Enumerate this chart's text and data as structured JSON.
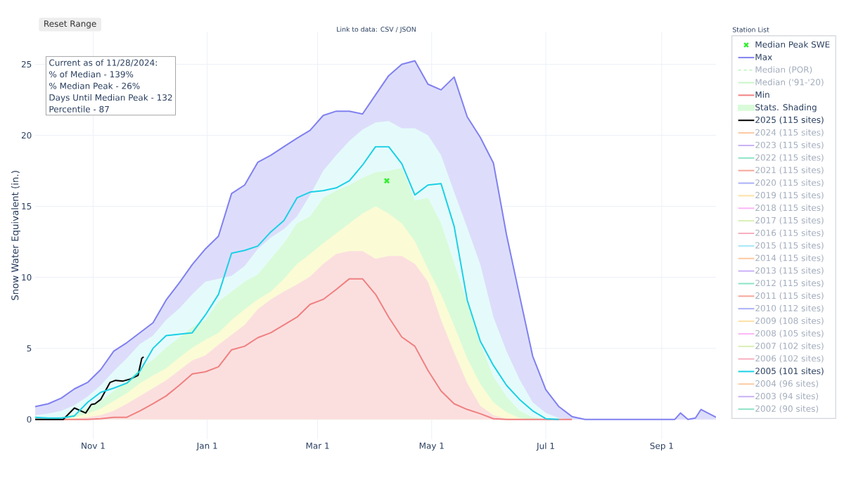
{
  "chart_data": {
    "type": "line",
    "ylabel": "Snow Water Equivalent (in.)",
    "legend_title": "Station List",
    "legend": "right",
    "grid": true,
    "annotations": [
      "Reset Range",
      "Link to data: CSV / JSON",
      "Current as of 11/28/2024:",
      "% of Median - 139%",
      "% Median Peak - 26%",
      "Days Until Median Peak - 132",
      "Percentile - 87"
    ],
    "xlim": [
      "2024-10-01",
      "2025-09-30"
    ],
    "xticks": [
      {
        "value": "2024-11-01",
        "label": "Nov 1"
      },
      {
        "value": "2025-01-01",
        "label": "Jan 1"
      },
      {
        "value": "2025-03-01",
        "label": "Mar 1"
      },
      {
        "value": "2025-05-01",
        "label": "May 1"
      },
      {
        "value": "2025-07-01",
        "label": "Jul 1"
      },
      {
        "value": "2025-09-01",
        "label": "Sep 1"
      }
    ],
    "ylim": [
      -1.4,
      27.3
    ],
    "yticks": [
      0,
      5,
      10,
      15,
      20,
      25
    ],
    "x": [
      "2024-10-01",
      "2024-10-08",
      "2024-10-15",
      "2024-10-22",
      "2024-10-29",
      "2024-11-05",
      "2024-11-12",
      "2024-11-19",
      "2024-11-26",
      "2024-12-03",
      "2024-12-10",
      "2024-12-17",
      "2024-12-24",
      "2024-12-31",
      "2025-01-07",
      "2025-01-14",
      "2025-01-21",
      "2025-01-28",
      "2025-02-04",
      "2025-02-11",
      "2025-02-18",
      "2025-02-25",
      "2025-03-04",
      "2025-03-11",
      "2025-03-18",
      "2025-03-25",
      "2025-04-01",
      "2025-04-08",
      "2025-04-15",
      "2025-04-22",
      "2025-04-29",
      "2025-05-06",
      "2025-05-13",
      "2025-05-20",
      "2025-05-27",
      "2025-06-03",
      "2025-06-10",
      "2025-06-17",
      "2025-06-24",
      "2025-07-01",
      "2025-07-08",
      "2025-07-15",
      "2025-07-22",
      "2025-07-29",
      "2025-08-15",
      "2025-09-01",
      "2025-09-08",
      "2025-09-11",
      "2025-09-15",
      "2025-09-19",
      "2025-09-22",
      "2025-09-30"
    ],
    "series": [
      {
        "name": "Median Peak SWE",
        "type": "scatter",
        "marker": "cross",
        "color": "#33ee33",
        "x": [
          "2025-04-07"
        ],
        "values": [
          16.8
        ]
      },
      {
        "name": "Max",
        "type": "area",
        "line_style": "solid",
        "color": "#8080f0",
        "values": [
          0.9,
          1.1,
          1.5,
          2.15,
          2.6,
          3.5,
          4.8,
          5.4,
          6.1,
          6.8,
          8.4,
          9.6,
          10.9,
          12.0,
          12.9,
          15.9,
          16.5,
          18.1,
          18.6,
          19.2,
          19.8,
          20.35,
          21.4,
          21.7,
          21.7,
          21.5,
          22.85,
          24.2,
          25.0,
          25.25,
          23.6,
          23.2,
          24.1,
          21.3,
          19.85,
          18.05,
          13.0,
          8.7,
          4.45,
          2.1,
          0.9,
          0.2,
          0,
          0,
          0,
          0,
          0,
          0.45,
          0,
          0.1,
          0.7,
          0.15
        ]
      },
      {
        "name": "Median (POR)",
        "line_style": "dashed",
        "color": "#c8f5c8",
        "values": [
          null,
          null,
          null,
          null,
          null,
          null,
          null,
          null,
          null,
          null,
          null,
          null,
          null,
          null,
          null,
          null,
          null,
          null,
          null,
          null,
          null,
          null,
          null,
          null,
          null,
          null,
          null,
          null,
          null,
          null,
          null,
          null,
          null,
          null,
          null,
          null,
          null,
          null,
          null,
          null,
          null,
          null,
          null,
          null,
          null,
          null,
          null,
          null,
          null,
          null,
          null,
          null
        ]
      },
      {
        "name": "Median ('91-'20)",
        "color": "#c8f5c8",
        "values": [
          null,
          null,
          null,
          null,
          null,
          null,
          null,
          null,
          null,
          null,
          null,
          null,
          null,
          null,
          null,
          null,
          null,
          null,
          null,
          null,
          null,
          null,
          null,
          null,
          null,
          null,
          null,
          null,
          null,
          null,
          null,
          null,
          null,
          null,
          null,
          null,
          null,
          null,
          null,
          null,
          null,
          null,
          null,
          null,
          null,
          null,
          null,
          null,
          null,
          null,
          null,
          null
        ]
      },
      {
        "name": "Min",
        "color": "#f08080",
        "values": [
          0,
          0,
          0,
          0,
          0,
          0.05,
          0.15,
          0.15,
          0.6,
          1.1,
          1.65,
          2.4,
          3.2,
          3.35,
          3.7,
          4.9,
          5.15,
          5.75,
          6.1,
          6.65,
          7.2,
          8.1,
          8.45,
          9.15,
          9.9,
          9.9,
          8.8,
          7.2,
          5.8,
          5.15,
          3.45,
          2.0,
          1.1,
          0.7,
          0.4,
          0.05,
          0,
          0,
          0,
          0,
          0,
          0,
          null,
          null,
          null,
          null,
          null,
          null,
          null,
          null,
          null,
          null
        ]
      },
      {
        "name": "Stats. Shading",
        "type": "area",
        "color": "#d9fbd9",
        "values": [
          0.1,
          0.1,
          0.15,
          0.4,
          0.8,
          1.3,
          2.0,
          2.7,
          3.6,
          4.2,
          5.05,
          5.75,
          6.5,
          7.0,
          8.3,
          9.0,
          9.7,
          10.2,
          11.3,
          12.4,
          13.8,
          14.3,
          15.6,
          16.1,
          16.5,
          17.0,
          17.4,
          17.5,
          17.7,
          15.4,
          15.6,
          13.8,
          11.0,
          8.2,
          5.3,
          3.0,
          1.6,
          0.6,
          0.15,
          0,
          null,
          null,
          null,
          null,
          null,
          null,
          null,
          null,
          null,
          null,
          null,
          null
        ]
      },
      {
        "name": "2025 (115 sites)",
        "color": "#000000",
        "x": [
          "2024-10-01",
          "2024-10-16",
          "2024-10-22",
          "2024-10-28",
          "2024-10-31",
          "2024-11-02",
          "2024-11-05",
          "2024-11-10",
          "2024-11-13",
          "2024-11-17",
          "2024-11-21",
          "2024-11-25",
          "2024-11-27",
          "2024-11-28"
        ],
        "values": [
          0,
          0,
          0.8,
          0.45,
          1.05,
          1.1,
          1.4,
          2.6,
          2.75,
          2.7,
          2.85,
          3.1,
          4.3,
          4.4
        ]
      },
      {
        "name": "2024 (115 sites)",
        "color": "#fdc9a0",
        "values": [
          null,
          null,
          null,
          null,
          null,
          null,
          null,
          null,
          null,
          null,
          null,
          null,
          null,
          null,
          null,
          null,
          null,
          null,
          null,
          null,
          null,
          null,
          null,
          null,
          null,
          null,
          null,
          null,
          null,
          null,
          null,
          null,
          null,
          null,
          null,
          null,
          null,
          null,
          null,
          null,
          null,
          null,
          null,
          null,
          null,
          null,
          null,
          null,
          null,
          null,
          null,
          null
        ]
      },
      {
        "name": "2023 (115 sites)",
        "color": "#c9b0f7",
        "values": [
          null,
          null,
          null,
          null,
          null,
          null,
          null,
          null,
          null,
          null,
          null,
          null,
          null,
          null,
          null,
          null,
          null,
          null,
          null,
          null,
          null,
          null,
          null,
          null,
          null,
          null,
          null,
          null,
          null,
          null,
          null,
          null,
          null,
          null,
          null,
          null,
          null,
          null,
          null,
          null,
          null,
          null,
          null,
          null,
          null,
          null,
          null,
          null,
          null,
          null,
          null,
          null
        ]
      },
      {
        "name": "2022 (115 sites)",
        "color": "#8de3c6",
        "values": [
          null,
          null,
          null,
          null,
          null,
          null,
          null,
          null,
          null,
          null,
          null,
          null,
          null,
          null,
          null,
          null,
          null,
          null,
          null,
          null,
          null,
          null,
          null,
          null,
          null,
          null,
          null,
          null,
          null,
          null,
          null,
          null,
          null,
          null,
          null,
          null,
          null,
          null,
          null,
          null,
          null,
          null,
          null,
          null,
          null,
          null,
          null,
          null,
          null,
          null,
          null,
          null
        ]
      },
      {
        "name": "2021 (115 sites)",
        "color": "#f7a597",
        "values": [
          null,
          null,
          null,
          null,
          null,
          null,
          null,
          null,
          null,
          null,
          null,
          null,
          null,
          null,
          null,
          null,
          null,
          null,
          null,
          null,
          null,
          null,
          null,
          null,
          null,
          null,
          null,
          null,
          null,
          null,
          null,
          null,
          null,
          null,
          null,
          null,
          null,
          null,
          null,
          null,
          null,
          null,
          null,
          null,
          null,
          null,
          null,
          null,
          null,
          null,
          null,
          null
        ]
      },
      {
        "name": "2020 (115 sites)",
        "color": "#aab0f7",
        "values": [
          null,
          null,
          null,
          null,
          null,
          null,
          null,
          null,
          null,
          null,
          null,
          null,
          null,
          null,
          null,
          null,
          null,
          null,
          null,
          null,
          null,
          null,
          null,
          null,
          null,
          null,
          null,
          null,
          null,
          null,
          null,
          null,
          null,
          null,
          null,
          null,
          null,
          null,
          null,
          null,
          null,
          null,
          null,
          null,
          null,
          null,
          null,
          null,
          null,
          null,
          null,
          null
        ]
      },
      {
        "name": "2019 (115 sites)",
        "color": "#fde1a4",
        "values": [
          null,
          null,
          null,
          null,
          null,
          null,
          null,
          null,
          null,
          null,
          null,
          null,
          null,
          null,
          null,
          null,
          null,
          null,
          null,
          null,
          null,
          null,
          null,
          null,
          null,
          null,
          null,
          null,
          null,
          null,
          null,
          null,
          null,
          null,
          null,
          null,
          null,
          null,
          null,
          null,
          null,
          null,
          null,
          null,
          null,
          null,
          null,
          null,
          null,
          null,
          null,
          null
        ]
      },
      {
        "name": "2018 (115 sites)",
        "color": "#fbb7f7",
        "values": [
          null,
          null,
          null,
          null,
          null,
          null,
          null,
          null,
          null,
          null,
          null,
          null,
          null,
          null,
          null,
          null,
          null,
          null,
          null,
          null,
          null,
          null,
          null,
          null,
          null,
          null,
          null,
          null,
          null,
          null,
          null,
          null,
          null,
          null,
          null,
          null,
          null,
          null,
          null,
          null,
          null,
          null,
          null,
          null,
          null,
          null,
          null,
          null,
          null,
          null,
          null,
          null
        ]
      },
      {
        "name": "2017 (115 sites)",
        "color": "#d8efb3",
        "values": [
          null,
          null,
          null,
          null,
          null,
          null,
          null,
          null,
          null,
          null,
          null,
          null,
          null,
          null,
          null,
          null,
          null,
          null,
          null,
          null,
          null,
          null,
          null,
          null,
          null,
          null,
          null,
          null,
          null,
          null,
          null,
          null,
          null,
          null,
          null,
          null,
          null,
          null,
          null,
          null,
          null,
          null,
          null,
          null,
          null,
          null,
          null,
          null,
          null,
          null,
          null,
          null
        ]
      },
      {
        "name": "2016 (115 sites)",
        "color": "#f8afc0",
        "values": [
          null,
          null,
          null,
          null,
          null,
          null,
          null,
          null,
          null,
          null,
          null,
          null,
          null,
          null,
          null,
          null,
          null,
          null,
          null,
          null,
          null,
          null,
          null,
          null,
          null,
          null,
          null,
          null,
          null,
          null,
          null,
          null,
          null,
          null,
          null,
          null,
          null,
          null,
          null,
          null,
          null,
          null,
          null,
          null,
          null,
          null,
          null,
          null,
          null,
          null,
          null,
          null
        ]
      },
      {
        "name": "2015 (115 sites)",
        "color": "#a6e6f8",
        "values": [
          null,
          null,
          null,
          null,
          null,
          null,
          null,
          null,
          null,
          null,
          null,
          null,
          null,
          null,
          null,
          null,
          null,
          null,
          null,
          null,
          null,
          null,
          null,
          null,
          null,
          null,
          null,
          null,
          null,
          null,
          null,
          null,
          null,
          null,
          null,
          null,
          null,
          null,
          null,
          null,
          null,
          null,
          null,
          null,
          null,
          null,
          null,
          null,
          null,
          null,
          null,
          null
        ]
      },
      {
        "name": "2014 (115 sites)",
        "color": "#fdc9a0",
        "values": [
          null,
          null,
          null,
          null,
          null,
          null,
          null,
          null,
          null,
          null,
          null,
          null,
          null,
          null,
          null,
          null,
          null,
          null,
          null,
          null,
          null,
          null,
          null,
          null,
          null,
          null,
          null,
          null,
          null,
          null,
          null,
          null,
          null,
          null,
          null,
          null,
          null,
          null,
          null,
          null,
          null,
          null,
          null,
          null,
          null,
          null,
          null,
          null,
          null,
          null,
          null,
          null
        ]
      },
      {
        "name": "2013 (115 sites)",
        "color": "#c9b0f7",
        "values": [
          null,
          null,
          null,
          null,
          null,
          null,
          null,
          null,
          null,
          null,
          null,
          null,
          null,
          null,
          null,
          null,
          null,
          null,
          null,
          null,
          null,
          null,
          null,
          null,
          null,
          null,
          null,
          null,
          null,
          null,
          null,
          null,
          null,
          null,
          null,
          null,
          null,
          null,
          null,
          null,
          null,
          null,
          null,
          null,
          null,
          null,
          null,
          null,
          null,
          null,
          null,
          null
        ]
      },
      {
        "name": "2012 (115 sites)",
        "color": "#8de3c6",
        "values": [
          null,
          null,
          null,
          null,
          null,
          null,
          null,
          null,
          null,
          null,
          null,
          null,
          null,
          null,
          null,
          null,
          null,
          null,
          null,
          null,
          null,
          null,
          null,
          null,
          null,
          null,
          null,
          null,
          null,
          null,
          null,
          null,
          null,
          null,
          null,
          null,
          null,
          null,
          null,
          null,
          null,
          null,
          null,
          null,
          null,
          null,
          null,
          null,
          null,
          null,
          null,
          null
        ]
      },
      {
        "name": "2011 (115 sites)",
        "color": "#f7a597",
        "values": [
          null,
          null,
          null,
          null,
          null,
          null,
          null,
          null,
          null,
          null,
          null,
          null,
          null,
          null,
          null,
          null,
          null,
          null,
          null,
          null,
          null,
          null,
          null,
          null,
          null,
          null,
          null,
          null,
          null,
          null,
          null,
          null,
          null,
          null,
          null,
          null,
          null,
          null,
          null,
          null,
          null,
          null,
          null,
          null,
          null,
          null,
          null,
          null,
          null,
          null,
          null,
          null
        ]
      },
      {
        "name": "2010 (112 sites)",
        "color": "#aab0f7",
        "values": [
          null,
          null,
          null,
          null,
          null,
          null,
          null,
          null,
          null,
          null,
          null,
          null,
          null,
          null,
          null,
          null,
          null,
          null,
          null,
          null,
          null,
          null,
          null,
          null,
          null,
          null,
          null,
          null,
          null,
          null,
          null,
          null,
          null,
          null,
          null,
          null,
          null,
          null,
          null,
          null,
          null,
          null,
          null,
          null,
          null,
          null,
          null,
          null,
          null,
          null,
          null,
          null
        ]
      },
      {
        "name": "2009 (108 sites)",
        "color": "#fde1a4",
        "values": [
          null,
          null,
          null,
          null,
          null,
          null,
          null,
          null,
          null,
          null,
          null,
          null,
          null,
          null,
          null,
          null,
          null,
          null,
          null,
          null,
          null,
          null,
          null,
          null,
          null,
          null,
          null,
          null,
          null,
          null,
          null,
          null,
          null,
          null,
          null,
          null,
          null,
          null,
          null,
          null,
          null,
          null,
          null,
          null,
          null,
          null,
          null,
          null,
          null,
          null,
          null,
          null
        ]
      },
      {
        "name": "2008 (105 sites)",
        "color": "#fbb7f7",
        "values": [
          null,
          null,
          null,
          null,
          null,
          null,
          null,
          null,
          null,
          null,
          null,
          null,
          null,
          null,
          null,
          null,
          null,
          null,
          null,
          null,
          null,
          null,
          null,
          null,
          null,
          null,
          null,
          null,
          null,
          null,
          null,
          null,
          null,
          null,
          null,
          null,
          null,
          null,
          null,
          null,
          null,
          null,
          null,
          null,
          null,
          null,
          null,
          null,
          null,
          null,
          null,
          null
        ]
      },
      {
        "name": "2007 (102 sites)",
        "color": "#d8efb3",
        "values": [
          null,
          null,
          null,
          null,
          null,
          null,
          null,
          null,
          null,
          null,
          null,
          null,
          null,
          null,
          null,
          null,
          null,
          null,
          null,
          null,
          null,
          null,
          null,
          null,
          null,
          null,
          null,
          null,
          null,
          null,
          null,
          null,
          null,
          null,
          null,
          null,
          null,
          null,
          null,
          null,
          null,
          null,
          null,
          null,
          null,
          null,
          null,
          null,
          null,
          null,
          null,
          null
        ]
      },
      {
        "name": "2006 (102 sites)",
        "color": "#f8afc0",
        "values": [
          null,
          null,
          null,
          null,
          null,
          null,
          null,
          null,
          null,
          null,
          null,
          null,
          null,
          null,
          null,
          null,
          null,
          null,
          null,
          null,
          null,
          null,
          null,
          null,
          null,
          null,
          null,
          null,
          null,
          null,
          null,
          null,
          null,
          null,
          null,
          null,
          null,
          null,
          null,
          null,
          null,
          null,
          null,
          null,
          null,
          null,
          null,
          null,
          null,
          null,
          null,
          null
        ]
      },
      {
        "name": "2005 (101 sites)",
        "color": "#1ad0e6",
        "values": [
          0.15,
          0.1,
          0.1,
          0.25,
          1.2,
          1.9,
          2.2,
          2.55,
          3.4,
          5.0,
          5.9,
          6.0,
          6.1,
          7.35,
          8.8,
          11.7,
          11.9,
          12.2,
          13.2,
          14.0,
          15.6,
          16.0,
          16.1,
          16.3,
          16.8,
          17.9,
          19.2,
          19.2,
          18.0,
          15.8,
          16.5,
          16.6,
          13.6,
          8.4,
          5.5,
          3.8,
          2.4,
          1.4,
          0.6,
          0.05,
          0,
          null,
          null,
          null,
          null,
          null,
          null,
          null,
          null,
          null,
          null,
          null
        ]
      },
      {
        "name": "2004 (96 sites)",
        "color": "#fdc9a0",
        "values": [
          null,
          null,
          null,
          null,
          null,
          null,
          null,
          null,
          null,
          null,
          null,
          null,
          null,
          null,
          null,
          null,
          null,
          null,
          null,
          null,
          null,
          null,
          null,
          null,
          null,
          null,
          null,
          null,
          null,
          null,
          null,
          null,
          null,
          null,
          null,
          null,
          null,
          null,
          null,
          null,
          null,
          null,
          null,
          null,
          null,
          null,
          null,
          null,
          null,
          null,
          null,
          null
        ]
      },
      {
        "name": "2003 (94 sites)",
        "color": "#c9b0f7",
        "values": [
          null,
          null,
          null,
          null,
          null,
          null,
          null,
          null,
          null,
          null,
          null,
          null,
          null,
          null,
          null,
          null,
          null,
          null,
          null,
          null,
          null,
          null,
          null,
          null,
          null,
          null,
          null,
          null,
          null,
          null,
          null,
          null,
          null,
          null,
          null,
          null,
          null,
          null,
          null,
          null,
          null,
          null,
          null,
          null,
          null,
          null,
          null,
          null,
          null,
          null,
          null,
          null
        ]
      },
      {
        "name": "2002 (90 sites)",
        "color": "#8de3c6",
        "values": [
          null,
          null,
          null,
          null,
          null,
          null,
          null,
          null,
          null,
          null,
          null,
          null,
          null,
          null,
          null,
          null,
          null,
          null,
          null,
          null,
          null,
          null,
          null,
          null,
          null,
          null,
          null,
          null,
          null,
          null,
          null,
          null,
          null,
          null,
          null,
          null,
          null,
          null,
          null,
          null,
          null,
          null,
          null,
          null,
          null,
          null,
          null,
          null,
          null,
          null,
          null,
          null
        ]
      },
      {
        "type": "area",
        "color": "#e5fbfb",
        "values": [
          0.3,
          0.4,
          0.6,
          1.0,
          1.6,
          2.4,
          3.4,
          4.3,
          5.3,
          5.9,
          7.0,
          7.8,
          8.8,
          9.7,
          9.9,
          10.1,
          10.8,
          12.0,
          12.8,
          13.4,
          14.3,
          15.8,
          17.5,
          18.6,
          19.6,
          20.4,
          20.9,
          21.0,
          20.5,
          20.5,
          20.0,
          18.6,
          16.0,
          13.5,
          10.9,
          7.2,
          4.8,
          2.8,
          1.2,
          0.45,
          0.1,
          0,
          null,
          null,
          null,
          null,
          null,
          null,
          null,
          null,
          null,
          null
        ]
      },
      {
        "type": "area",
        "color": "#fbfbd6",
        "values": [
          0,
          0,
          0.05,
          0.15,
          0.4,
          0.75,
          1.3,
          1.85,
          2.55,
          3.1,
          3.6,
          4.35,
          5.05,
          5.6,
          6.1,
          7.0,
          7.75,
          8.45,
          9.0,
          9.9,
          10.95,
          11.65,
          12.4,
          13.1,
          13.8,
          14.5,
          15.0,
          14.5,
          13.8,
          12.55,
          10.6,
          8.8,
          6.6,
          4.3,
          2.5,
          1.2,
          0.5,
          0.1,
          0,
          null,
          null,
          null,
          null,
          null,
          null,
          null,
          null,
          null,
          null,
          null,
          null,
          null
        ]
      },
      {
        "type": "area",
        "color": "#fbdfdf",
        "values": [
          0,
          0,
          0,
          0.05,
          0.15,
          0.3,
          0.6,
          1.1,
          1.65,
          2.2,
          2.75,
          3.45,
          4.15,
          4.5,
          5.25,
          5.95,
          6.65,
          7.75,
          8.45,
          9.0,
          9.5,
          10.05,
          10.95,
          11.65,
          11.85,
          11.85,
          11.3,
          11.5,
          11.5,
          10.95,
          9.7,
          7.0,
          4.7,
          2.55,
          0.95,
          0.3,
          0.05,
          0,
          null,
          null,
          null,
          null,
          null,
          null,
          null,
          null,
          null,
          null,
          null,
          null,
          null,
          null
        ]
      }
    ]
  }
}
